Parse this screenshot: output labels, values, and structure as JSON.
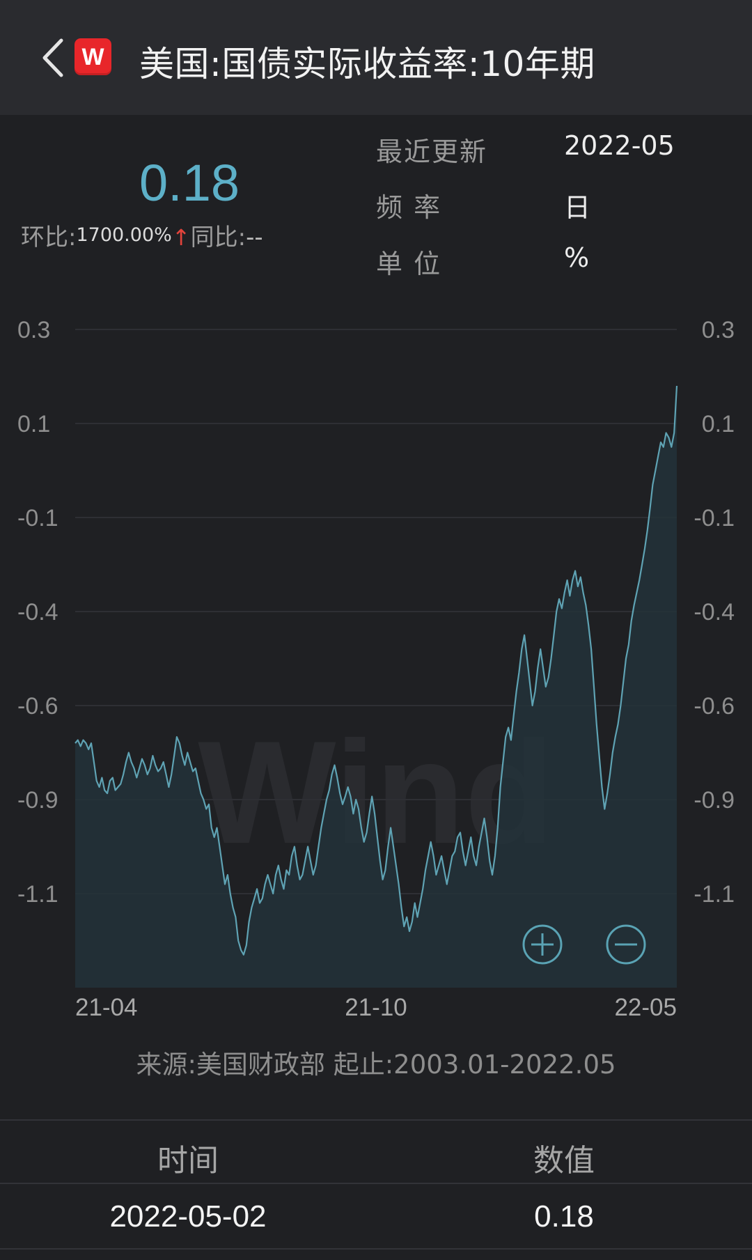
{
  "header": {
    "title": "美国:国债实际收益率:10年期",
    "back_icon": "chevron-left-icon",
    "logo_icon": "wind-logo-icon",
    "logo_letter": "W"
  },
  "summary": {
    "latest_value": "0.18",
    "mom_label": "环比:",
    "mom_value": "1700.00%",
    "mom_arrow": "↑",
    "yoy_label": "同比:",
    "yoy_value": "--"
  },
  "info": [
    {
      "label": "最近更新",
      "value": "2022-05"
    },
    {
      "label": "频 率",
      "value": "日"
    },
    {
      "label": "单 位",
      "value": "%"
    }
  ],
  "chart_data": {
    "type": "area",
    "y_tick_labels": [
      "0.3",
      "0.1",
      "-0.1",
      "-0.4",
      "-0.6",
      "-0.9",
      "-1.1"
    ],
    "x_tick_labels": [
      "21-04",
      "21-10",
      "22-05"
    ],
    "x_range": [
      "2021-04",
      "2022-05"
    ],
    "ylim": [
      -1.3,
      0.3
    ],
    "grid": true,
    "watermark": "Wind",
    "colors": {
      "line": "#5fa3b4",
      "fill": "#23333a"
    },
    "series": [
      {
        "values": [
          -0.72,
          -0.71,
          -0.73,
          -0.71,
          -0.72,
          -0.74,
          -0.72,
          -0.78,
          -0.84,
          -0.86,
          -0.83,
          -0.87,
          -0.88,
          -0.84,
          -0.83,
          -0.87,
          -0.86,
          -0.85,
          -0.82,
          -0.78,
          -0.75,
          -0.78,
          -0.8,
          -0.83,
          -0.8,
          -0.77,
          -0.79,
          -0.82,
          -0.8,
          -0.76,
          -0.79,
          -0.81,
          -0.8,
          -0.78,
          -0.82,
          -0.86,
          -0.82,
          -0.76,
          -0.7,
          -0.72,
          -0.76,
          -0.79,
          -0.75,
          -0.78,
          -0.81,
          -0.8,
          -0.84,
          -0.88,
          -0.9,
          -0.92,
          -0.91,
          -0.96,
          -0.98,
          -0.96,
          -1.0,
          -1.04,
          -1.08,
          -1.06,
          -1.1,
          -1.13,
          -1.15,
          -1.2,
          -1.22,
          -1.23,
          -1.21,
          -1.16,
          -1.13,
          -1.11,
          -1.09,
          -1.12,
          -1.11,
          -1.08,
          -1.06,
          -1.08,
          -1.1,
          -1.06,
          -1.04,
          -1.07,
          -1.09,
          -1.05,
          -1.06,
          -1.02,
          -1.0,
          -1.04,
          -1.07,
          -1.06,
          -1.03,
          -1.0,
          -1.03,
          -1.06,
          -1.04,
          -1.0,
          -0.96,
          -0.93,
          -0.9,
          -0.87,
          -0.82,
          -0.79,
          -0.83,
          -0.88,
          -0.91,
          -0.89,
          -0.86,
          -0.89,
          -0.93,
          -0.9,
          -0.92,
          -0.96,
          -0.99,
          -0.97,
          -0.93,
          -0.89,
          -0.93,
          -0.98,
          -1.03,
          -1.07,
          -1.05,
          -1.0,
          -0.96,
          -1.0,
          -1.04,
          -1.08,
          -1.13,
          -1.17,
          -1.15,
          -1.18,
          -1.16,
          -1.12,
          -1.15,
          -1.12,
          -1.09,
          -1.05,
          -1.02,
          -0.99,
          -1.02,
          -1.06,
          -1.04,
          -1.02,
          -1.05,
          -1.08,
          -1.05,
          -1.02,
          -1.01,
          -0.98,
          -0.97,
          -1.01,
          -1.04,
          -1.01,
          -0.98,
          -1.02,
          -1.04,
          -1.0,
          -0.97,
          -0.94,
          -0.98,
          -1.03,
          -1.06,
          -1.02,
          -0.96,
          -0.86,
          -0.78,
          -0.7,
          -0.67,
          -0.71,
          -0.63,
          -0.57,
          -0.53,
          -0.48,
          -0.45,
          -0.5,
          -0.55,
          -0.6,
          -0.57,
          -0.52,
          -0.48,
          -0.52,
          -0.56,
          -0.54,
          -0.5,
          -0.45,
          -0.4,
          -0.36,
          -0.39,
          -0.34,
          -0.3,
          -0.35,
          -0.3,
          -0.27,
          -0.32,
          -0.29,
          -0.34,
          -0.38,
          -0.43,
          -0.48,
          -0.56,
          -0.66,
          -0.76,
          -0.86,
          -0.92,
          -0.88,
          -0.82,
          -0.75,
          -0.7,
          -0.66,
          -0.6,
          -0.55,
          -0.5,
          -0.47,
          -0.42,
          -0.38,
          -0.34,
          -0.3,
          -0.25,
          -0.2,
          -0.14,
          -0.08,
          -0.03,
          0.0,
          0.03,
          0.06,
          0.05,
          0.08,
          0.07,
          0.05,
          0.08,
          0.18
        ]
      }
    ]
  },
  "zoom": {
    "zoom_in_icon": "zoom-in-icon",
    "zoom_out_icon": "zoom-out-icon"
  },
  "source": {
    "text": "来源:美国财政部 起止:2003.01-2022.05"
  },
  "table": {
    "headers": [
      "时间",
      "数值"
    ],
    "rows": [
      [
        "2022-05-02",
        "0.18"
      ]
    ]
  }
}
